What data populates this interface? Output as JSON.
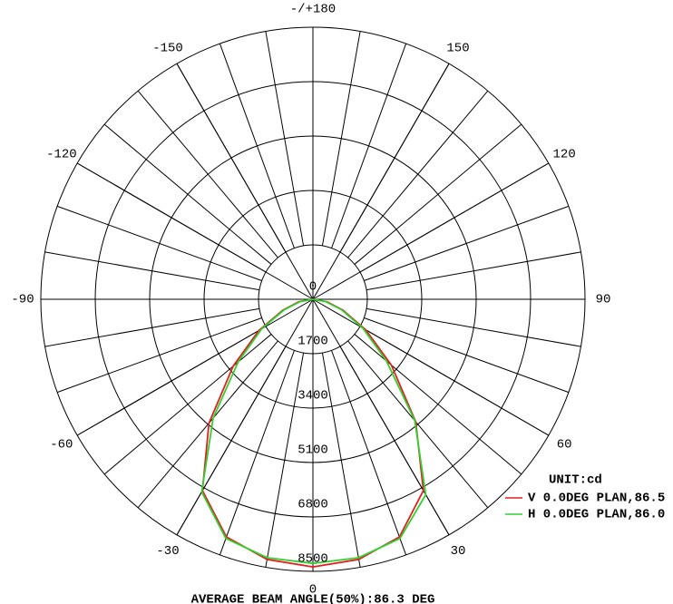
{
  "chart_data": {
    "type": "polar",
    "x": [
      -90,
      -80,
      -70,
      -60,
      -50,
      -40,
      -30,
      -20,
      -10,
      0,
      10,
      20,
      30,
      40,
      50,
      60,
      70,
      80,
      90
    ],
    "series": [
      {
        "name": "V 0.0DEG PLAN,86.5",
        "color": "#e02020",
        "values": [
          0,
          450,
          1000,
          1950,
          3250,
          5050,
          6900,
          7900,
          8250,
          8360,
          8250,
          7900,
          6900,
          5000,
          3200,
          1900,
          1000,
          450,
          0
        ]
      },
      {
        "name": "H 0.0DEG PLAN,86.0",
        "color": "#30d030",
        "values": [
          0,
          400,
          950,
          1850,
          3050,
          4850,
          6950,
          7950,
          8200,
          8250,
          8200,
          7950,
          7050,
          4950,
          3000,
          1800,
          950,
          400,
          0
        ]
      }
    ],
    "rlim": [
      0,
      8500
    ],
    "rticks": [
      0,
      1700,
      3400,
      5100,
      6800,
      8500
    ],
    "xticks": [
      {
        "value": 180,
        "label": "-/+180"
      },
      150,
      120,
      90,
      60,
      30,
      0,
      -30,
      -60,
      -90,
      -120,
      -150
    ],
    "legend_title": "UNIT:cd",
    "footer": "AVERAGE BEAM ANGLE(50%):86.3 DEG",
    "grid": true
  }
}
